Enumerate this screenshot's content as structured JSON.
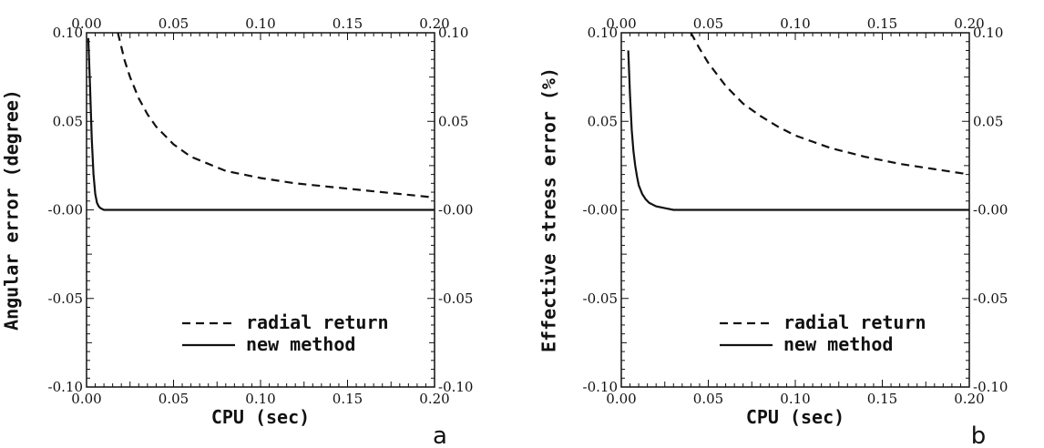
{
  "chart_data": [
    {
      "type": "line",
      "panel_label": "a",
      "xlabel": "CPU (sec)",
      "ylabel": "Angular error (degree)",
      "xlim": [
        0,
        0.2
      ],
      "ylim": [
        -0.1,
        0.1
      ],
      "x_ticks": [
        "0.00",
        "0.05",
        "0.10",
        "0.15",
        "0.20"
      ],
      "y_ticks": [
        "-0.10",
        "-0.05",
        "-0.00",
        "0.05",
        "0.10"
      ],
      "legend": "lower-right",
      "grid": false,
      "series": [
        {
          "name": "radial return",
          "style": "dashed",
          "x": [
            0.018,
            0.02,
            0.022,
            0.025,
            0.03,
            0.035,
            0.04,
            0.05,
            0.06,
            0.07,
            0.08,
            0.09,
            0.1,
            0.12,
            0.14,
            0.16,
            0.18,
            0.2
          ],
          "y": [
            0.1,
            0.092,
            0.084,
            0.075,
            0.063,
            0.054,
            0.047,
            0.037,
            0.03,
            0.026,
            0.022,
            0.02,
            0.018,
            0.015,
            0.013,
            0.011,
            0.009,
            0.007
          ]
        },
        {
          "name": "new method",
          "style": "solid",
          "x": [
            0.001,
            0.002,
            0.003,
            0.004,
            0.005,
            0.006,
            0.007,
            0.008,
            0.01,
            0.015,
            0.02,
            0.05,
            0.1,
            0.15,
            0.2
          ],
          "y": [
            0.097,
            0.07,
            0.04,
            0.02,
            0.009,
            0.004,
            0.002,
            0.001,
            0.0,
            0.0,
            0.0,
            0.0,
            0.0,
            0.0,
            0.0
          ]
        }
      ]
    },
    {
      "type": "line",
      "panel_label": "b",
      "xlabel": "CPU (sec)",
      "ylabel": "Effective stress error (%)",
      "xlim": [
        0,
        0.2
      ],
      "ylim": [
        -0.1,
        0.1
      ],
      "x_ticks": [
        "0.00",
        "0.05",
        "0.10",
        "0.15",
        "0.20"
      ],
      "y_ticks": [
        "-0.10",
        "-0.05",
        "-0.00",
        "0.05",
        "0.10"
      ],
      "legend": "lower-right",
      "grid": false,
      "series": [
        {
          "name": "radial return",
          "style": "dashed",
          "x": [
            0.04,
            0.045,
            0.05,
            0.06,
            0.07,
            0.08,
            0.09,
            0.1,
            0.12,
            0.14,
            0.16,
            0.18,
            0.2
          ],
          "y": [
            0.1,
            0.091,
            0.083,
            0.07,
            0.06,
            0.053,
            0.047,
            0.042,
            0.035,
            0.03,
            0.026,
            0.023,
            0.02
          ]
        },
        {
          "name": "new method",
          "style": "solid",
          "x": [
            0.004,
            0.005,
            0.006,
            0.007,
            0.008,
            0.009,
            0.01,
            0.012,
            0.014,
            0.016,
            0.02,
            0.025,
            0.03,
            0.05,
            0.1,
            0.15,
            0.2
          ],
          "y": [
            0.09,
            0.065,
            0.045,
            0.033,
            0.025,
            0.019,
            0.014,
            0.009,
            0.006,
            0.004,
            0.002,
            0.001,
            0.0,
            0.0,
            0.0,
            0.0,
            0.0
          ]
        }
      ]
    }
  ]
}
